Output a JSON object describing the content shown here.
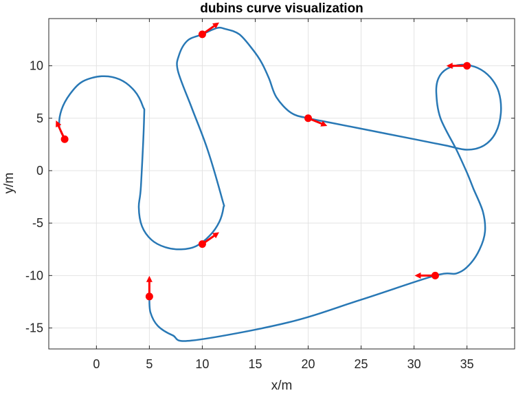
{
  "chart_data": {
    "type": "line",
    "title": "dubins curve visualization",
    "xlabel": "x/m",
    "ylabel": "y/m",
    "xlim": [
      -4.5,
      39.5
    ],
    "ylim": [
      -17,
      14.5
    ],
    "xticks": [
      0,
      5,
      10,
      15,
      20,
      25,
      30,
      35
    ],
    "xtick_labels": [
      "0",
      "5",
      "10",
      "15",
      "20",
      "25",
      "30",
      "35"
    ],
    "yticks": [
      -15,
      -10,
      -5,
      0,
      5,
      10
    ],
    "ytick_labels": [
      "-15",
      "-10",
      "-5",
      "0",
      "5",
      "10"
    ],
    "grid": true,
    "box": true,
    "colors": {
      "path": "#2878b5",
      "waypoint": "#ff0000",
      "grid": "#e3e3e3",
      "axis": "#262626"
    },
    "path": {
      "x": [
        -3,
        -3.5,
        -3.3,
        -2.5,
        -1.3,
        0.5,
        2.2,
        3.6,
        4.4,
        4.5,
        4.2,
        4.0,
        4.3,
        5.2,
        6.5,
        8.0,
        9.4,
        10.7,
        11.6,
        12.0,
        11.9,
        10.5,
        9.0,
        7.7,
        7.8,
        8.6,
        10.0,
        11.4,
        12.2,
        13.5,
        14.8,
        15.6,
        16.3,
        17.0,
        18.4,
        20.0,
        22.0,
        26.0,
        30.0,
        33.0,
        35.0,
        36.6,
        37.7,
        38.2,
        38.0,
        37.2,
        36.0,
        34.5,
        33.1,
        32.3,
        32.1,
        32.5,
        34.0,
        35.0,
        35.6,
        36.5,
        36.7,
        36.2,
        35.2,
        34.0,
        32.0,
        25.0,
        18.0,
        9.0,
        7.2,
        5.8,
        5.1,
        5.0
      ],
      "y": [
        3,
        4.2,
        5.8,
        7.3,
        8.5,
        9.0,
        8.7,
        7.6,
        6.1,
        5.0,
        -1.5,
        -3.5,
        -5.3,
        -6.6,
        -7.3,
        -7.5,
        -7.2,
        -6.2,
        -4.9,
        -3.5,
        -2.8,
        2.0,
        6.0,
        9.5,
        11.0,
        12.4,
        13.0,
        13.6,
        13.5,
        13.0,
        11.5,
        10.3,
        8.8,
        7.0,
        5.5,
        5.0,
        4.6,
        3.8,
        3.0,
        2.4,
        2.0,
        2.4,
        3.6,
        5.5,
        7.5,
        8.9,
        9.8,
        10.1,
        9.7,
        8.8,
        7.4,
        5.0,
        2.0,
        -0.2,
        -1.7,
        -3.9,
        -5.8,
        -7.5,
        -9.0,
        -9.8,
        -10.0,
        -12.3,
        -14.5,
        -16.2,
        -15.7,
        -14.8,
        -13.5,
        -12.0
      ]
    },
    "waypoints": [
      {
        "x": -3,
        "y": 3,
        "heading_deg": 115
      },
      {
        "x": 10,
        "y": -7,
        "heading_deg": 35
      },
      {
        "x": 10,
        "y": 13,
        "heading_deg": 35
      },
      {
        "x": 20,
        "y": 5,
        "heading_deg": -22
      },
      {
        "x": 35,
        "y": 10,
        "heading_deg": 180
      },
      {
        "x": 32,
        "y": -10,
        "heading_deg": 180
      },
      {
        "x": 5,
        "y": -12,
        "heading_deg": 90
      }
    ]
  }
}
